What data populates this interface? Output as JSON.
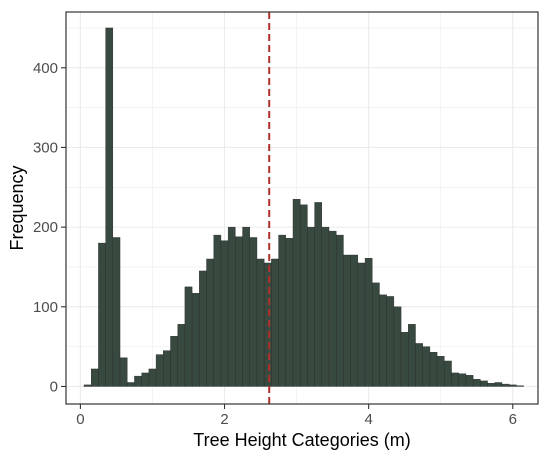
{
  "chart_data": {
    "type": "bar",
    "xlabel": "Tree Height Categories (m)",
    "ylabel": "Frequency",
    "xlim": [
      -0.2,
      6.35
    ],
    "ylim": [
      -22,
      470
    ],
    "x_ticks": [
      0,
      2,
      4,
      6
    ],
    "y_ticks": [
      0,
      100,
      200,
      300,
      400
    ],
    "x_tick_labels": [
      "0",
      "2",
      "4",
      "6"
    ],
    "y_tick_labels": [
      "0",
      "100",
      "200",
      "300",
      "400"
    ],
    "bin_width": 0.1,
    "bin_starts": [
      0.05,
      0.15,
      0.25,
      0.35,
      0.45,
      0.55,
      0.65,
      0.75,
      0.85,
      0.95,
      1.05,
      1.15,
      1.25,
      1.35,
      1.45,
      1.55,
      1.65,
      1.75,
      1.85,
      1.95,
      2.05,
      2.15,
      2.25,
      2.35,
      2.45,
      2.55,
      2.65,
      2.75,
      2.85,
      2.95,
      3.05,
      3.15,
      3.25,
      3.35,
      3.45,
      3.55,
      3.65,
      3.75,
      3.85,
      3.95,
      4.05,
      4.15,
      4.25,
      4.35,
      4.45,
      4.55,
      4.65,
      4.75,
      4.85,
      4.95,
      5.05,
      5.15,
      5.25,
      5.35,
      5.45,
      5.55,
      5.65,
      5.75,
      5.85,
      5.95,
      6.05
    ],
    "values": [
      2,
      22,
      180,
      450,
      187,
      36,
      5,
      13,
      17,
      22,
      40,
      45,
      63,
      78,
      125,
      117,
      145,
      160,
      190,
      183,
      200,
      188,
      200,
      187,
      160,
      155,
      160,
      190,
      186,
      235,
      228,
      200,
      231,
      200,
      195,
      190,
      165,
      165,
      155,
      161,
      130,
      115,
      113,
      100,
      68,
      78,
      54,
      50,
      43,
      38,
      32,
      17,
      16,
      14,
      9,
      7,
      4,
      5,
      3,
      2,
      1
    ],
    "reference_line": {
      "x": 2.62,
      "color": "#b0302c",
      "style": "dashed"
    },
    "bar_color": "#38493f",
    "bar_edge_color": "#2a2a2a",
    "grid": true,
    "legend": "none"
  }
}
